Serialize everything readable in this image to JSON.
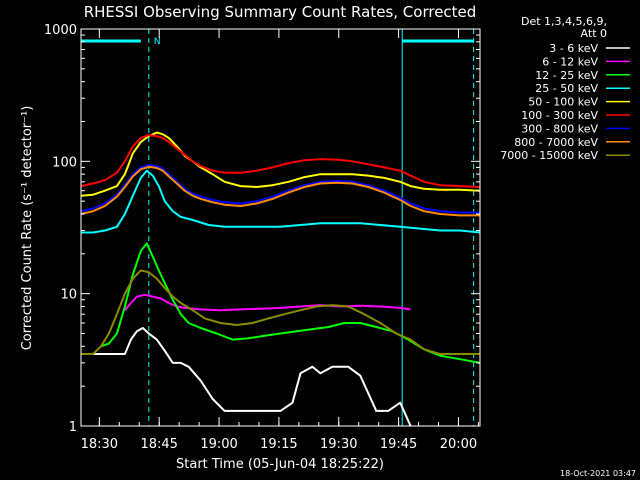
{
  "chart_data": {
    "type": "line",
    "title": "RHESSI Observing Summary Count Rates, Corrected",
    "xlabel": "Start Time (05-Jun-04 18:25:22)",
    "ylabel": "Corrected Count Rate (s⁻¹ detector⁻¹)",
    "yscale": "log",
    "ylim": [
      1,
      1000
    ],
    "xlim_minutes": [
      0,
      100
    ],
    "x_ticks": [
      {
        "label": "18:30",
        "t": 4.6
      },
      {
        "label": "18:45",
        "t": 19.6
      },
      {
        "label": "19:00",
        "t": 34.6
      },
      {
        "label": "19:15",
        "t": 49.6
      },
      {
        "label": "19:30",
        "t": 64.6
      },
      {
        "label": "19:45",
        "t": 79.6
      },
      {
        "label": "20:00",
        "t": 94.6
      }
    ],
    "y_ticks": [
      {
        "label": "1",
        "v": 1
      },
      {
        "label": "10",
        "v": 10
      },
      {
        "label": "100",
        "v": 100
      },
      {
        "label": "1000",
        "v": 1000
      }
    ],
    "legend_header": [
      "Det 1,3,4,5,6,9,",
      "Att 0"
    ],
    "legend_position": "top-right",
    "timestamp": "18-Oct-2021 03:47",
    "night_markers": [
      0,
      80.5,
      98.4
    ],
    "saa_marker": 17.0,
    "saa_label": "N",
    "colors": {
      "night_bar": "#00ffff",
      "saa": "#00ffff",
      "axes": "#ffffff"
    },
    "series": [
      {
        "name": "3 - 6 keV",
        "color": "#ffffff",
        "x": [
          0,
          3,
          5,
          7,
          9,
          11,
          12.5,
          14,
          15.5,
          17,
          19,
          21,
          23,
          25,
          27,
          30,
          33,
          36,
          40,
          45,
          50,
          53,
          55,
          58,
          60,
          63,
          67,
          70,
          74,
          77,
          80,
          82.6
        ],
        "y": [
          3.5,
          3.5,
          3.5,
          3.5,
          3.5,
          3.5,
          4.5,
          5.2,
          5.5,
          5.0,
          4.5,
          3.7,
          3.0,
          3.0,
          2.8,
          2.2,
          1.6,
          1.3,
          1.3,
          1.3,
          1.3,
          1.5,
          2.5,
          2.8,
          2.5,
          2.8,
          2.8,
          2.4,
          1.3,
          1.3,
          1.5,
          1.0
        ]
      },
      {
        "name": "6 - 12 keV",
        "color": "#ff00ff",
        "x": [
          11,
          12.5,
          14,
          16,
          18,
          20,
          22,
          24,
          26,
          28,
          30,
          35,
          40,
          45,
          50,
          55,
          60,
          65,
          70,
          75,
          80,
          82.6
        ],
        "y": [
          7.5,
          8.5,
          9.5,
          9.8,
          9.5,
          9.2,
          8.5,
          8.0,
          7.8,
          7.7,
          7.6,
          7.5,
          7.6,
          7.7,
          7.8,
          8.0,
          8.2,
          8.0,
          8.1,
          8.0,
          7.8,
          7.6
        ]
      },
      {
        "name": "12 - 25 keV",
        "color": "#00ff00",
        "x": [
          5,
          7,
          9,
          11,
          13,
          15,
          16.5,
          18,
          19.5,
          21,
          23,
          25,
          27,
          30,
          34,
          38,
          42,
          46,
          50,
          54,
          58,
          62,
          66,
          70,
          74,
          78,
          82,
          86,
          90,
          95,
          100
        ],
        "y": [
          4.0,
          4.2,
          5.0,
          8.0,
          14,
          21,
          24,
          19,
          15,
          12,
          9.0,
          7.0,
          6.0,
          5.5,
          5.0,
          4.5,
          4.6,
          4.8,
          5.0,
          5.2,
          5.4,
          5.6,
          6.0,
          6.0,
          5.6,
          5.2,
          4.5,
          3.8,
          3.4,
          3.2,
          3.0
        ]
      },
      {
        "name": "25 - 50 keV",
        "color": "#00ffff",
        "x": [
          0,
          3,
          6,
          9,
          11,
          13,
          15,
          16.5,
          18,
          19.5,
          21,
          23,
          25,
          28,
          32,
          36,
          40,
          45,
          50,
          55,
          60,
          65,
          70,
          75,
          80,
          85,
          90,
          95,
          100
        ],
        "y": [
          29,
          29,
          30,
          32,
          40,
          55,
          75,
          85,
          78,
          65,
          50,
          42,
          38,
          36,
          33,
          32,
          32,
          32,
          32,
          33,
          34,
          34,
          34,
          33,
          32,
          31,
          30,
          30,
          29
        ]
      },
      {
        "name": "50 - 100 keV",
        "color": "#ffff00",
        "x": [
          0,
          3,
          6,
          9,
          11,
          13,
          15,
          17,
          19,
          20.5,
          22,
          24,
          26,
          28,
          30,
          33,
          36,
          40,
          44,
          48,
          52,
          56,
          60,
          64,
          68,
          72,
          76,
          80,
          82.6,
          86,
          90,
          95,
          100
        ],
        "y": [
          55,
          56,
          60,
          65,
          80,
          115,
          140,
          155,
          165,
          160,
          150,
          130,
          110,
          100,
          90,
          80,
          70,
          65,
          64,
          66,
          70,
          76,
          80,
          80,
          80,
          78,
          75,
          70,
          65,
          62,
          61,
          61,
          60
        ]
      },
      {
        "name": "100 - 300 keV",
        "color": "#ff0000",
        "x": [
          0,
          3,
          6,
          9,
          11,
          13,
          15,
          17,
          19,
          20.5,
          22,
          24,
          26,
          28,
          30,
          33,
          36,
          40,
          44,
          48,
          52,
          56,
          60,
          64,
          68,
          72,
          76,
          80,
          82.6,
          86,
          90,
          95,
          100
        ],
        "y": [
          65,
          68,
          72,
          82,
          100,
          130,
          150,
          158,
          155,
          150,
          140,
          125,
          112,
          100,
          92,
          85,
          82,
          82,
          85,
          90,
          97,
          102,
          104,
          103,
          100,
          95,
          90,
          85,
          78,
          70,
          66,
          65,
          64
        ]
      },
      {
        "name": "300 - 800 keV",
        "color": "#0000ff",
        "x": [
          0,
          3,
          6,
          9,
          11,
          13,
          15,
          17,
          19,
          20.5,
          22,
          24,
          26,
          28,
          30,
          33,
          36,
          40,
          44,
          48,
          52,
          56,
          60,
          64,
          68,
          72,
          76,
          80,
          82.6,
          86,
          90,
          95,
          100
        ],
        "y": [
          42,
          44,
          48,
          56,
          66,
          80,
          90,
          94,
          92,
          88,
          80,
          70,
          62,
          57,
          54,
          51,
          49,
          48,
          50,
          54,
          60,
          66,
          70,
          71,
          70,
          66,
          60,
          53,
          48,
          44,
          42,
          41,
          41
        ]
      },
      {
        "name": "800 - 7000 keV",
        "color": "#ff8c00",
        "x": [
          0,
          3,
          6,
          9,
          11,
          13,
          15,
          17,
          19,
          20.5,
          22,
          24,
          26,
          28,
          30,
          33,
          36,
          40,
          44,
          48,
          52,
          56,
          60,
          64,
          68,
          72,
          76,
          80,
          82.6,
          86,
          90,
          95,
          100
        ],
        "y": [
          40,
          42,
          46,
          54,
          64,
          77,
          87,
          91,
          89,
          85,
          77,
          68,
          60,
          55,
          52,
          49,
          47,
          46,
          48,
          52,
          58,
          64,
          68,
          69,
          68,
          64,
          58,
          51,
          46,
          42,
          40,
          39,
          39
        ]
      },
      {
        "name": "7000 - 15000 keV",
        "color": "#8b8b00",
        "x": [
          0,
          3,
          5,
          7,
          9,
          11,
          13,
          15,
          17,
          19,
          21,
          23,
          25,
          28,
          31,
          35,
          39,
          43,
          47,
          51,
          55,
          59,
          63,
          67,
          71,
          75,
          79,
          82.6,
          86,
          90,
          95,
          100
        ],
        "y": [
          3.5,
          3.5,
          4.0,
          5.0,
          7.0,
          10,
          13,
          15,
          14.5,
          13,
          11,
          9.5,
          8.5,
          7.5,
          6.5,
          6.0,
          5.8,
          6.0,
          6.5,
          7.0,
          7.5,
          8.0,
          8.2,
          8.0,
          7.0,
          6.0,
          5.0,
          4.5,
          3.8,
          3.5,
          3.5,
          3.5
        ]
      }
    ]
  }
}
